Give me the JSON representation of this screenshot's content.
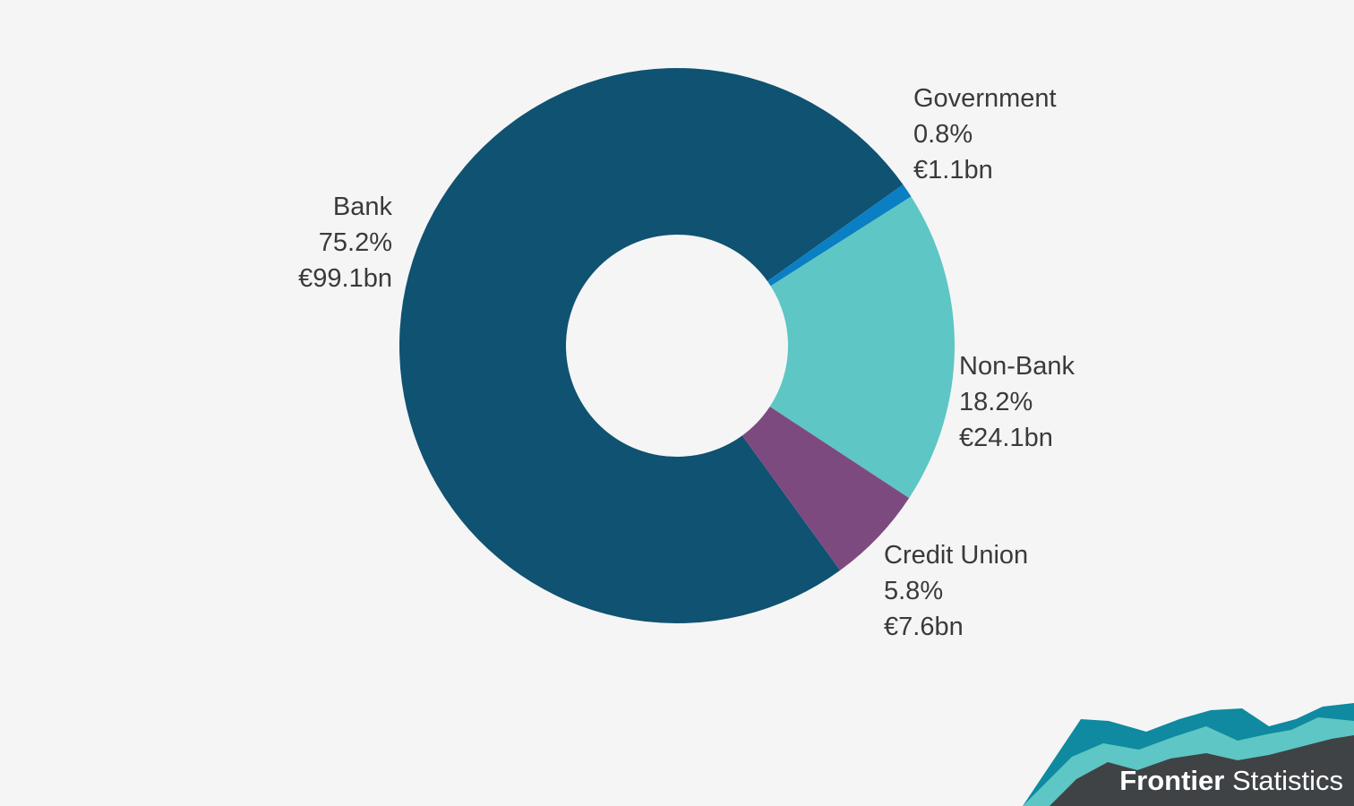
{
  "chart_data": {
    "type": "pie",
    "donut": true,
    "title": "",
    "slices": [
      {
        "name": "Bank",
        "percent_label": "75.2%",
        "value_label": "€99.1bn",
        "value": 99.1,
        "color": "#0f5271"
      },
      {
        "name": "Government",
        "percent_label": "0.8%",
        "value_label": "€1.1bn",
        "value": 1.1,
        "color": "#0a7fc4"
      },
      {
        "name": "Non-Bank",
        "percent_label": "18.2%",
        "value_label": "€24.1bn",
        "value": 24.1,
        "color": "#5ec6c4"
      },
      {
        "name": "Credit Union",
        "percent_label": "5.8%",
        "value_label": "€7.6bn",
        "value": 7.6,
        "color": "#7d4a80"
      }
    ],
    "legend": "none"
  },
  "branding": {
    "bold_part": "Frontier",
    "regular_part": " Statistics",
    "colors": {
      "dark": "#3f4346",
      "teal_dark": "#0f8aa0",
      "teal_light": "#5ec6c4"
    }
  }
}
